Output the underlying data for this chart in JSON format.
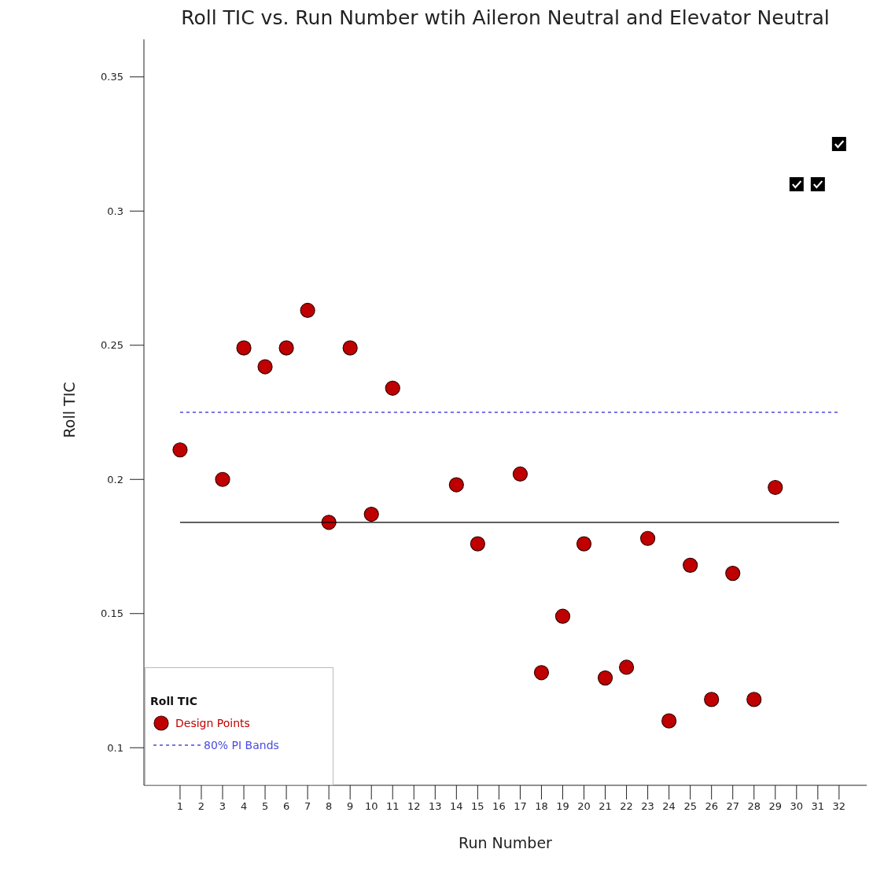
{
  "chart_data": {
    "type": "scatter",
    "title": "Roll TIC vs. Run Number wtih Aileron Neutral and Elevator Neutral",
    "xlabel": "Run Number",
    "ylabel": "Roll TIC",
    "legend_title": "Roll TIC",
    "legend": "bottom left",
    "grid": false,
    "xlim": [
      -0.7,
      33.3
    ],
    "xticks": [
      1,
      2,
      3,
      4,
      5,
      6,
      7,
      8,
      9,
      10,
      11,
      12,
      13,
      14,
      15,
      16,
      17,
      18,
      19,
      20,
      21,
      22,
      23,
      24,
      25,
      26,
      27,
      28,
      29,
      30,
      31,
      32
    ],
    "ylim": [
      0.086,
      0.364
    ],
    "yticks": [
      0.1,
      0.15,
      0.2,
      0.25,
      0.3,
      0.35
    ],
    "series": [
      {
        "name": "Design Points",
        "color": "#c00000",
        "marker": "circle",
        "x": [
          1,
          3,
          4,
          5,
          6,
          7,
          8,
          9,
          10,
          11,
          14,
          15,
          17,
          18,
          19,
          20,
          21,
          22,
          23,
          24,
          25,
          26,
          27,
          28,
          29
        ],
        "values": [
          0.211,
          0.2,
          0.249,
          0.242,
          0.249,
          0.263,
          0.184,
          0.249,
          0.187,
          0.234,
          0.198,
          0.176,
          0.202,
          0.128,
          0.149,
          0.176,
          0.126,
          0.13,
          0.178,
          0.11,
          0.168,
          0.118,
          0.165,
          0.118,
          0.197
        ]
      },
      {
        "color": "#000000",
        "marker": "square",
        "x": [
          30,
          31,
          32
        ],
        "values": [
          0.31,
          0.31,
          0.325
        ]
      },
      {
        "name": "80% PI Bands",
        "type": "line",
        "color": "#4a4ae0",
        "line_style": "dashed",
        "x": [
          1,
          32
        ],
        "values": [
          0.225,
          0.225
        ]
      },
      {
        "type": "line",
        "color": "#000000",
        "line_style": "solid",
        "x": [
          1,
          32
        ],
        "values": [
          0.184,
          0.184
        ]
      }
    ]
  }
}
